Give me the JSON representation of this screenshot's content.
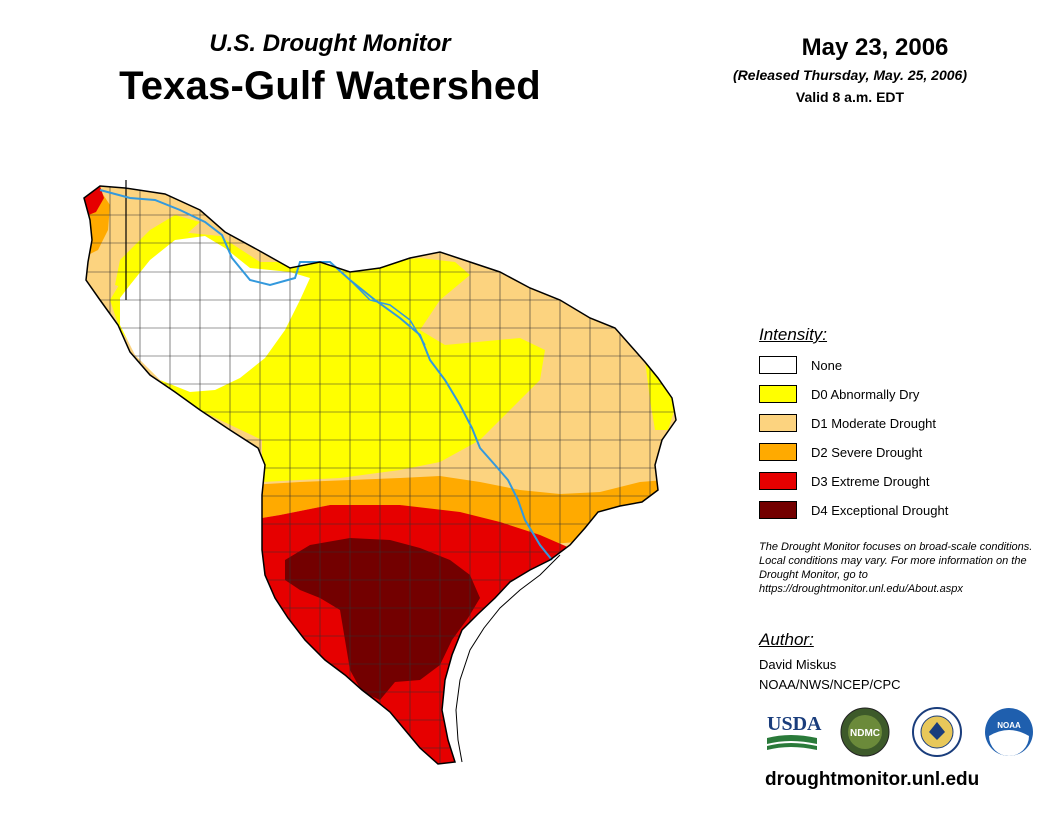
{
  "header": {
    "subtitle": "U.S. Drought Monitor",
    "title": "Texas-Gulf Watershed",
    "date": "May 23, 2006",
    "released": "(Released Thursday, May. 25, 2006)",
    "valid": "Valid 8 a.m. EDT"
  },
  "legend": {
    "heading": "Intensity:",
    "items": [
      {
        "label": "None",
        "color": "#ffffff"
      },
      {
        "label": "D0 Abnormally Dry",
        "color": "#ffff00"
      },
      {
        "label": "D1 Moderate Drought",
        "color": "#fcd37f"
      },
      {
        "label": "D2 Severe Drought",
        "color": "#ffaa00"
      },
      {
        "label": "D3 Extreme Drought",
        "color": "#e60000"
      },
      {
        "label": "D4 Exceptional Drought",
        "color": "#730000"
      }
    ]
  },
  "note": "The Drought Monitor focuses on broad-scale conditions. Local conditions may vary. For more information on the Drought Monitor, go to https://droughtmonitor.unl.edu/About.aspx",
  "author": {
    "heading": "Author:",
    "name": "David Miskus",
    "org": "NOAA/NWS/NCEP/CPC"
  },
  "logos": [
    {
      "name": "usda-logo",
      "text": "USDA"
    },
    {
      "name": "ndmc-logo",
      "text": "NDMC"
    },
    {
      "name": "doc-seal",
      "text": ""
    },
    {
      "name": "noaa-logo",
      "text": "NOAA"
    }
  ],
  "website": "droughtmonitor.unl.edu",
  "map": {
    "river_color": "#3399dd",
    "border_color": "#000000",
    "county_line_color": "#333333"
  }
}
